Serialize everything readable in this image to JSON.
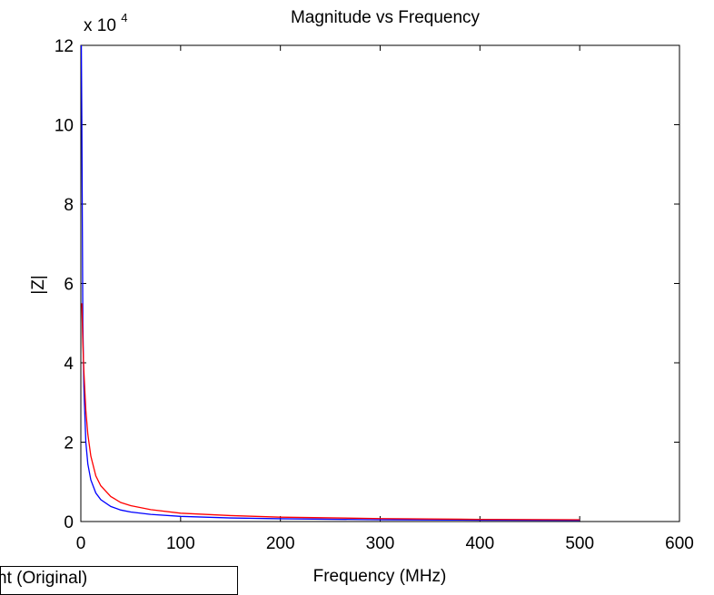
{
  "chart_data": {
    "type": "line",
    "title": "Magnitude vs Frequency",
    "xlabel": "Frequency (MHz)",
    "ylabel": "|Z|",
    "xlim": [
      0,
      600
    ],
    "ylim": [
      0,
      12
    ],
    "y_multiplier": "x 10",
    "y_multiplier_exponent": "4",
    "xticks": [
      0,
      100,
      200,
      300,
      400,
      500,
      600
    ],
    "xtick_labels": [
      "0",
      "100",
      "200",
      "300",
      "400",
      "500",
      "600"
    ],
    "yticks": [
      0,
      2,
      4,
      6,
      8,
      10,
      12
    ],
    "ytick_labels": [
      "0",
      "2",
      "4",
      "6",
      "8",
      "10",
      "12"
    ],
    "grid": false,
    "series": [
      {
        "color": "#0000ff",
        "x": [
          0.5,
          1,
          2,
          3,
          5,
          7,
          10,
          15,
          20,
          30,
          40,
          50,
          70,
          100,
          150,
          200,
          300,
          400,
          500
        ],
        "y": [
          12.0,
          10.0,
          5.0,
          3.4,
          2.0,
          1.45,
          1.05,
          0.72,
          0.55,
          0.38,
          0.29,
          0.24,
          0.18,
          0.13,
          0.09,
          0.07,
          0.045,
          0.035,
          0.03
        ]
      },
      {
        "color": "#ff0000",
        "x": [
          1,
          2,
          3,
          5,
          7,
          10,
          15,
          20,
          30,
          40,
          50,
          70,
          100,
          150,
          200,
          300,
          400,
          500
        ],
        "y": [
          5.5,
          4.5,
          3.8,
          2.8,
          2.2,
          1.65,
          1.15,
          0.9,
          0.63,
          0.48,
          0.4,
          0.3,
          0.21,
          0.15,
          0.11,
          0.075,
          0.055,
          0.045
        ]
      }
    ],
    "legend": {
      "position": "bottom-left",
      "visible_text": "nt (Original)"
    }
  }
}
